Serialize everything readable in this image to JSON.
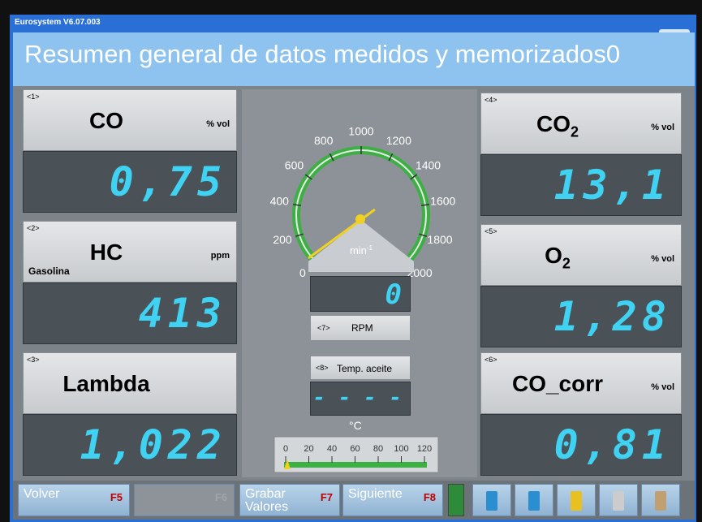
{
  "window": {
    "title": "Eurosystem V6.07.003"
  },
  "header": {
    "title": "Resumen general de datos medidos y memorizados0"
  },
  "panels": [
    {
      "index": "<1>",
      "name": "CO",
      "unit": "% vol",
      "value": "0,75"
    },
    {
      "index": "<2>",
      "name": "HC",
      "unit": "ppm",
      "note": "Gasolina",
      "value": "413"
    },
    {
      "index": "<3>",
      "name": "Lambda",
      "value": "1,022"
    },
    {
      "index": "<4>",
      "name": "CO",
      "sub": "2",
      "unit": "% vol",
      "value": "13,1"
    },
    {
      "index": "<5>",
      "name": "O",
      "sub": "2",
      "unit": "% vol",
      "value": "1,28"
    },
    {
      "index": "<6>",
      "name": "CO_corr",
      "unit": "% vol",
      "value": "0,81"
    }
  ],
  "rpm": {
    "index": "<7>",
    "label": "RPM",
    "unit": "min",
    "unit_sup": "-1",
    "value": "0",
    "scale": [
      0,
      200,
      400,
      600,
      800,
      1000,
      1200,
      1400,
      1600,
      1800,
      2000
    ]
  },
  "temp": {
    "index": "<8>",
    "label": "Temp. aceite",
    "value": "- - - -",
    "unit": "°C",
    "scale": [
      0,
      20,
      40,
      60,
      80,
      100,
      120
    ]
  },
  "buttons": [
    {
      "label": "Volver",
      "key": "F5"
    },
    {
      "key": "F6"
    },
    {
      "label": "Grabar Valores",
      "key": "F7"
    },
    {
      "label": "Siguiente",
      "key": "F8"
    }
  ]
}
